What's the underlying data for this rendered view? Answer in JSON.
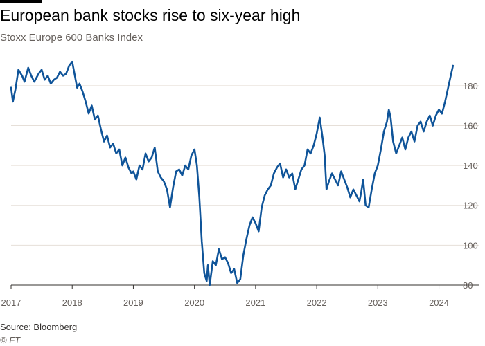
{
  "colors": {
    "line": "#0f5499",
    "grid": "#e6dfd8",
    "axis": "#33302e",
    "text_muted": "#66605c"
  },
  "chart_data": {
    "type": "line",
    "title": "European bank stocks rise to six-year high",
    "subtitle": "Stoxx Europe 600 Banks Index",
    "xlabel": "",
    "ylabel": "",
    "xlim": [
      2017.0,
      2024.3
    ],
    "ylim": [
      80,
      190
    ],
    "y_ticks": [
      80,
      100,
      120,
      140,
      160,
      180
    ],
    "y_tick_labels": [
      "80",
      "100",
      "120",
      "140",
      "160",
      "180"
    ],
    "x_ticks": [
      2017,
      2018,
      2019,
      2020,
      2021,
      2022,
      2023,
      2024
    ],
    "x_tick_labels": [
      "2017",
      "2018",
      "2019",
      "2020",
      "2021",
      "2022",
      "2023",
      "2024"
    ],
    "grid": true,
    "series": [
      {
        "name": "Stoxx Europe 600 Banks Index",
        "x": [
          2017.0,
          2017.03,
          2017.07,
          2017.12,
          2017.18,
          2017.22,
          2017.28,
          2017.33,
          2017.38,
          2017.45,
          2017.5,
          2017.55,
          2017.6,
          2017.65,
          2017.7,
          2017.75,
          2017.8,
          2017.85,
          2017.9,
          2017.95,
          2018.0,
          2018.05,
          2018.08,
          2018.12,
          2018.17,
          2018.22,
          2018.27,
          2018.32,
          2018.37,
          2018.42,
          2018.47,
          2018.52,
          2018.57,
          2018.62,
          2018.67,
          2018.72,
          2018.77,
          2018.82,
          2018.87,
          2018.92,
          2018.97,
          2019.0,
          2019.05,
          2019.1,
          2019.15,
          2019.2,
          2019.25,
          2019.3,
          2019.35,
          2019.4,
          2019.45,
          2019.5,
          2019.55,
          2019.6,
          2019.65,
          2019.7,
          2019.75,
          2019.8,
          2019.85,
          2019.9,
          2019.95,
          2020.0,
          2020.04,
          2020.08,
          2020.12,
          2020.16,
          2020.2,
          2020.22,
          2020.25,
          2020.3,
          2020.35,
          2020.4,
          2020.45,
          2020.5,
          2020.55,
          2020.6,
          2020.65,
          2020.7,
          2020.75,
          2020.8,
          2020.85,
          2020.9,
          2020.95,
          2021.0,
          2021.05,
          2021.1,
          2021.15,
          2021.2,
          2021.25,
          2021.3,
          2021.35,
          2021.4,
          2021.45,
          2021.5,
          2021.55,
          2021.6,
          2021.65,
          2021.7,
          2021.75,
          2021.8,
          2021.85,
          2021.9,
          2021.95,
          2022.0,
          2022.05,
          2022.1,
          2022.13,
          2022.16,
          2022.2,
          2022.25,
          2022.3,
          2022.35,
          2022.4,
          2022.45,
          2022.5,
          2022.55,
          2022.6,
          2022.65,
          2022.7,
          2022.73,
          2022.76,
          2022.8,
          2022.85,
          2022.9,
          2022.95,
          2023.0,
          2023.05,
          2023.1,
          2023.15,
          2023.18,
          2023.21,
          2023.25,
          2023.3,
          2023.35,
          2023.4,
          2023.45,
          2023.5,
          2023.55,
          2023.6,
          2023.65,
          2023.7,
          2023.75,
          2023.8,
          2023.85,
          2023.9,
          2023.95,
          2024.0,
          2024.05,
          2024.1,
          2024.15,
          2024.2,
          2024.23
        ],
        "values": [
          179,
          172,
          178,
          188,
          185,
          182,
          189,
          185,
          182,
          186,
          188,
          183,
          185,
          181,
          183,
          184,
          187,
          185,
          186,
          190,
          192,
          184,
          179,
          181,
          177,
          172,
          166,
          170,
          163,
          165,
          158,
          152,
          155,
          149,
          151,
          146,
          148,
          140,
          144,
          139,
          136,
          137,
          133,
          140,
          138,
          146,
          142,
          144,
          149,
          137,
          134,
          132,
          128,
          119,
          129,
          137,
          138,
          135,
          140,
          138,
          145,
          148,
          140,
          124,
          102,
          86,
          82,
          90,
          80,
          92,
          90,
          98,
          93,
          94,
          91,
          86,
          88,
          81,
          83,
          95,
          103,
          110,
          114,
          111,
          107,
          119,
          125,
          128,
          130,
          136,
          139,
          141,
          134,
          138,
          134,
          136,
          128,
          133,
          138,
          140,
          148,
          146,
          150,
          156,
          164,
          153,
          145,
          128,
          132,
          136,
          133,
          130,
          137,
          133,
          129,
          124,
          128,
          125,
          122,
          127,
          133,
          120,
          119,
          128,
          136,
          140,
          148,
          157,
          162,
          168,
          164,
          152,
          146,
          150,
          154,
          148,
          154,
          157,
          152,
          160,
          162,
          157,
          162,
          165,
          160,
          165,
          168,
          166,
          172,
          179,
          186,
          190
        ]
      }
    ]
  },
  "footer": {
    "source": "Source: Bloomberg",
    "credit": "© FT"
  }
}
